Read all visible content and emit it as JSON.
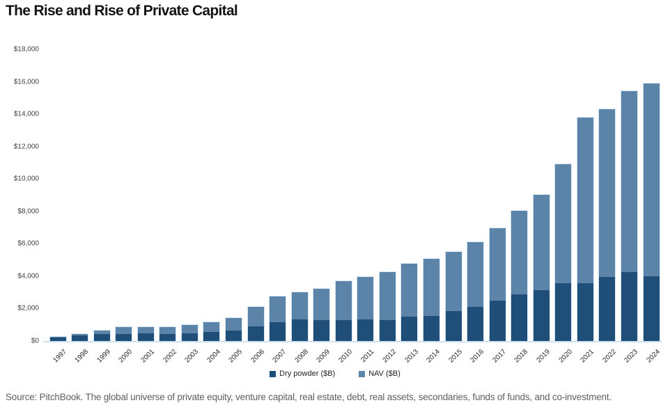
{
  "title": "The Rise and Rise of Private Capital",
  "source_note": "Source: PitchBook. The global universe of private equity, venture capital, real estate, debt, real assets, secondaries, funds of funds, and co-investment.",
  "colors": {
    "dry_powder": "#1f4e79",
    "nav": "#5b84a8",
    "axis_line": "#cfe0f2",
    "title_text": "#141414",
    "tick_text": "#3f3f3f",
    "source_text": "#5f5f5f",
    "background": "#ffffff"
  },
  "legend": {
    "dry_powder_label": "Dry powder ($B)",
    "nav_label": "NAV ($B)"
  },
  "chart_data": {
    "type": "bar",
    "stacked": true,
    "title": "The Rise and Rise of Private Capital",
    "xlabel": "",
    "ylabel": "",
    "ylim": [
      0,
      18000
    ],
    "grid": false,
    "legend_position": "bottom",
    "y_ticks": [
      0,
      2000,
      4000,
      6000,
      8000,
      10000,
      12000,
      14000,
      16000,
      18000
    ],
    "y_tick_labels": [
      "$0",
      "$2,000",
      "$4,000",
      "$6,000",
      "$8,000",
      "$10,000",
      "$12,000",
      "$14,000",
      "$16,000",
      "$18,000"
    ],
    "categories": [
      "1997",
      "1998",
      "1999",
      "2000",
      "2001",
      "2002",
      "2003",
      "2004",
      "2005",
      "2006",
      "2007",
      "2008",
      "2009",
      "2010",
      "2011",
      "2012",
      "2013",
      "2014",
      "2015",
      "2016",
      "2017",
      "2018",
      "2019",
      "2020",
      "2021",
      "2022",
      "2023",
      "2024"
    ],
    "series": [
      {
        "name": "Dry powder ($B)",
        "color_key": "dry_powder",
        "values": [
          200,
          330,
          440,
          450,
          470,
          450,
          470,
          560,
          660,
          900,
          1150,
          1320,
          1300,
          1270,
          1320,
          1300,
          1510,
          1560,
          1860,
          2110,
          2500,
          2900,
          3150,
          3550,
          3570,
          3950,
          4260,
          3980
        ]
      },
      {
        "name": "NAV ($B)",
        "color_key": "nav",
        "values": [
          45,
          85,
          215,
          410,
          400,
          430,
          520,
          580,
          770,
          1210,
          1610,
          1700,
          1920,
          2420,
          2630,
          2960,
          3250,
          3530,
          3620,
          3980,
          4480,
          5150,
          5860,
          7360,
          10240,
          10350,
          11180,
          11910
        ]
      }
    ],
    "totals": [
      245,
      415,
      655,
      860,
      870,
      880,
      990,
      1140,
      1430,
      2110,
      2760,
      3020,
      3220,
      3690,
      3950,
      4260,
      4760,
      5090,
      5480,
      6090,
      6980,
      8050,
      9010,
      10910,
      13810,
      14300,
      15440,
      15890
    ]
  }
}
